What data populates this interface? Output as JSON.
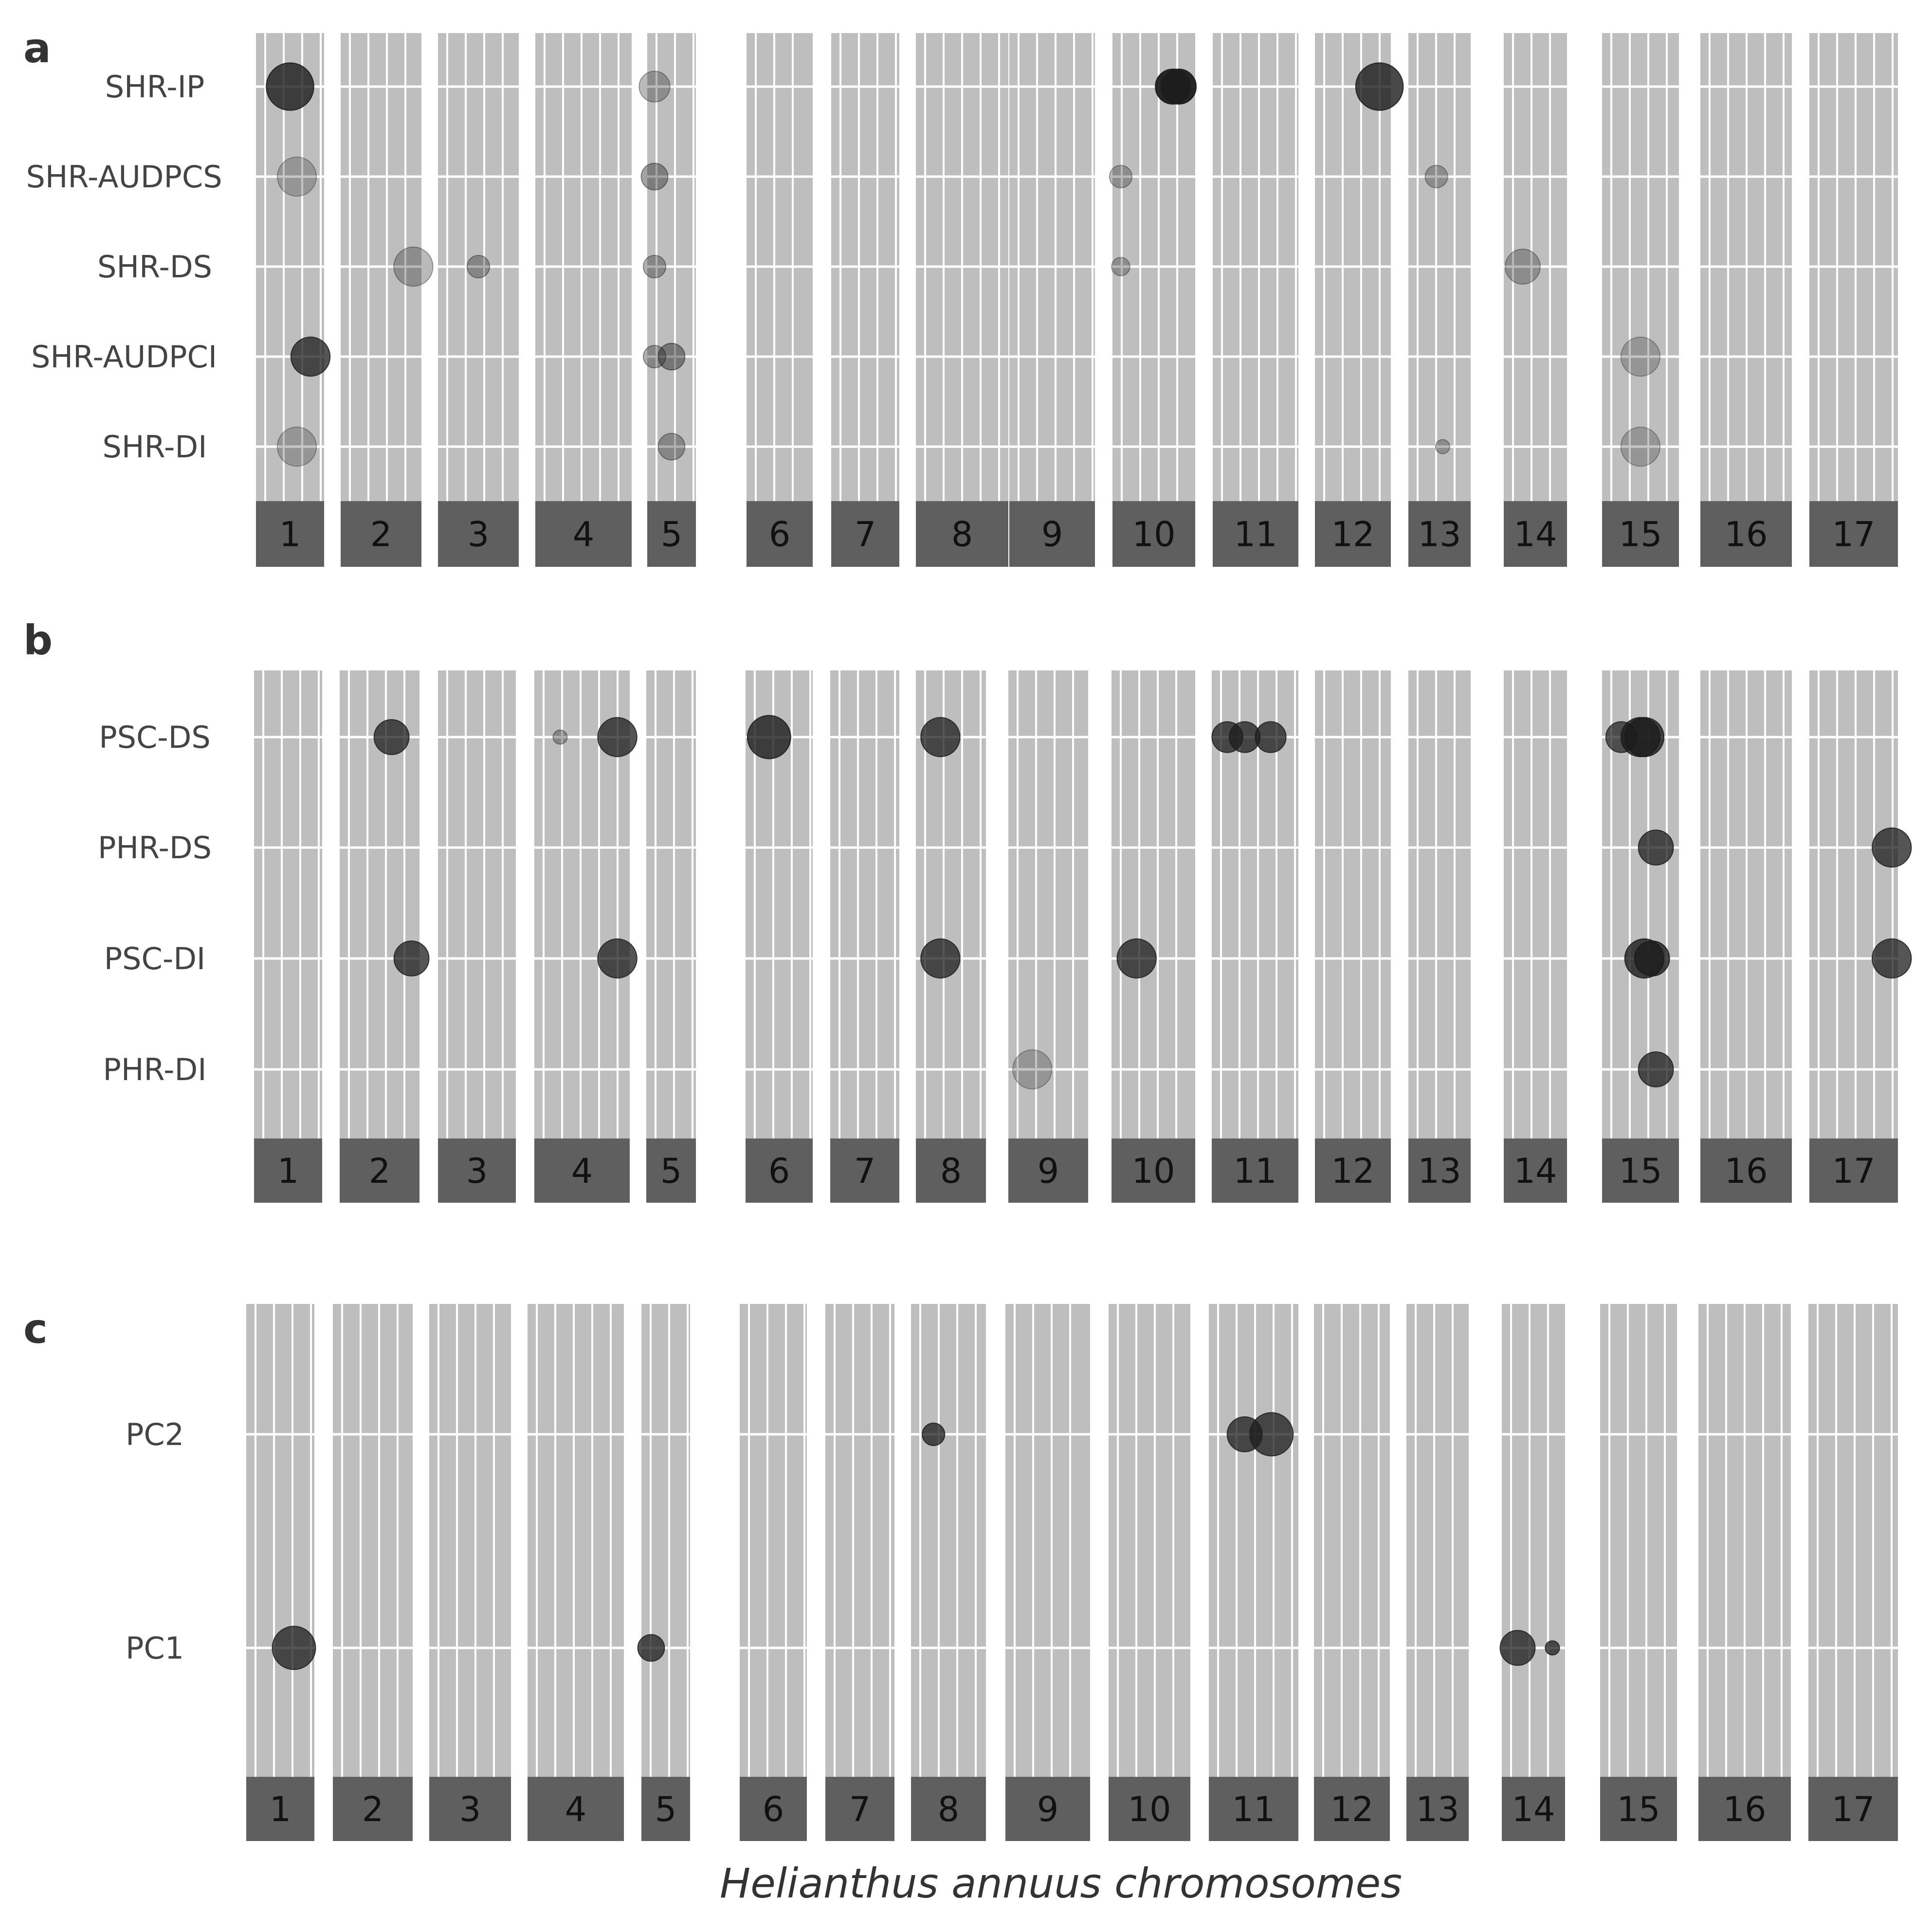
{
  "chart_data": {
    "type": "scatter",
    "xlabel": "Helianthus annuus chromosomes",
    "chromosomes": [
      "1",
      "2",
      "3",
      "4",
      "5",
      "6",
      "7",
      "8",
      "9",
      "10",
      "11",
      "12",
      "13",
      "14",
      "15",
      "16",
      "17"
    ],
    "colors": {
      "panel_bg": "#bebebe",
      "grid": "#ffffff",
      "strip": "#5f5f5f",
      "point": "#1c1c1c"
    },
    "panels": [
      {
        "letter": "a",
        "traits": [
          "SHR-IP",
          "SHR-AUDPCS",
          "SHR-DS",
          "SHR-AUDPCI",
          "SHR-DI"
        ],
        "points": [
          {
            "trait": "SHR-IP",
            "chr": 1,
            "pos": 0.5,
            "size": 10,
            "opacity": 0.8
          },
          {
            "trait": "SHR-IP",
            "chr": 5,
            "pos": 0.15,
            "size": 6,
            "opacity": 0.3
          },
          {
            "trait": "SHR-IP",
            "chr": 10,
            "pos": 0.73,
            "size": 7,
            "opacity": 0.95
          },
          {
            "trait": "SHR-IP",
            "chr": 10,
            "pos": 0.8,
            "size": 7,
            "opacity": 0.95
          },
          {
            "trait": "SHR-IP",
            "chr": 12,
            "pos": 0.85,
            "size": 10,
            "opacity": 0.8
          },
          {
            "trait": "SHR-AUDPCS",
            "chr": 1,
            "pos": 0.6,
            "size": 8,
            "opacity": 0.25
          },
          {
            "trait": "SHR-AUDPCS",
            "chr": 5,
            "pos": 0.15,
            "size": 5,
            "opacity": 0.4
          },
          {
            "trait": "SHR-AUDPCS",
            "chr": 10,
            "pos": 0.1,
            "size": 4,
            "opacity": 0.3
          },
          {
            "trait": "SHR-AUDPCS",
            "chr": 13,
            "pos": 0.45,
            "size": 4,
            "opacity": 0.3
          },
          {
            "trait": "SHR-DS",
            "chr": 2,
            "pos": 0.9,
            "size": 8,
            "opacity": 0.3
          },
          {
            "trait": "SHR-DS",
            "chr": 3,
            "pos": 0.5,
            "size": 4,
            "opacity": 0.35
          },
          {
            "trait": "SHR-DS",
            "chr": 5,
            "pos": 0.15,
            "size": 4,
            "opacity": 0.35
          },
          {
            "trait": "SHR-DS",
            "chr": 10,
            "pos": 0.1,
            "size": 3,
            "opacity": 0.3
          },
          {
            "trait": "SHR-DS",
            "chr": 14,
            "pos": 0.3,
            "size": 7,
            "opacity": 0.3
          },
          {
            "trait": "SHR-AUDPCI",
            "chr": 1,
            "pos": 0.8,
            "size": 8,
            "opacity": 0.75
          },
          {
            "trait": "SHR-AUDPCI",
            "chr": 5,
            "pos": 0.15,
            "size": 4,
            "opacity": 0.35
          },
          {
            "trait": "SHR-AUDPCI",
            "chr": 5,
            "pos": 0.5,
            "size": 5,
            "opacity": 0.45
          },
          {
            "trait": "SHR-AUDPCI",
            "chr": 15,
            "pos": 0.5,
            "size": 8,
            "opacity": 0.25
          },
          {
            "trait": "SHR-DI",
            "chr": 1,
            "pos": 0.6,
            "size": 8,
            "opacity": 0.25
          },
          {
            "trait": "SHR-DI",
            "chr": 5,
            "pos": 0.5,
            "size": 5,
            "opacity": 0.35
          },
          {
            "trait": "SHR-DI",
            "chr": 13,
            "pos": 0.55,
            "size": 2,
            "opacity": 0.3
          },
          {
            "trait": "SHR-DI",
            "chr": 15,
            "pos": 0.5,
            "size": 8,
            "opacity": 0.25
          }
        ]
      },
      {
        "letter": "b",
        "traits": [
          "PSC-DS",
          "PHR-DS",
          "PSC-DI",
          "PHR-DI"
        ],
        "points": [
          {
            "trait": "PSC-DS",
            "chr": 2,
            "pos": 0.65,
            "size": 7,
            "opacity": 0.75
          },
          {
            "trait": "PSC-DS",
            "chr": 4,
            "pos": 0.27,
            "size": 2,
            "opacity": 0.35
          },
          {
            "trait": "PSC-DS",
            "chr": 4,
            "pos": 0.87,
            "size": 8,
            "opacity": 0.75
          },
          {
            "trait": "PSC-DS",
            "chr": 6,
            "pos": 0.35,
            "size": 9,
            "opacity": 0.8
          },
          {
            "trait": "PSC-DS",
            "chr": 8,
            "pos": 0.35,
            "size": 8,
            "opacity": 0.75
          },
          {
            "trait": "PSC-DS",
            "chr": 11,
            "pos": 0.18,
            "size": 6,
            "opacity": 0.75
          },
          {
            "trait": "PSC-DS",
            "chr": 11,
            "pos": 0.38,
            "size": 6,
            "opacity": 0.75
          },
          {
            "trait": "PSC-DS",
            "chr": 11,
            "pos": 0.68,
            "size": 6,
            "opacity": 0.75
          },
          {
            "trait": "PSC-DS",
            "chr": 15,
            "pos": 0.25,
            "size": 6,
            "opacity": 0.7
          },
          {
            "trait": "PSC-DS",
            "chr": 15,
            "pos": 0.5,
            "size": 8,
            "opacity": 0.8
          },
          {
            "trait": "PSC-DS",
            "chr": 15,
            "pos": 0.55,
            "size": 8,
            "opacity": 0.8
          },
          {
            "trait": "PHR-DS",
            "chr": 15,
            "pos": 0.7,
            "size": 7,
            "opacity": 0.75
          },
          {
            "trait": "PHR-DS",
            "chr": 17,
            "pos": 0.93,
            "size": 8,
            "opacity": 0.75
          },
          {
            "trait": "PSC-DI",
            "chr": 2,
            "pos": 0.9,
            "size": 7,
            "opacity": 0.75
          },
          {
            "trait": "PSC-DI",
            "chr": 4,
            "pos": 0.87,
            "size": 8,
            "opacity": 0.75
          },
          {
            "trait": "PSC-DI",
            "chr": 8,
            "pos": 0.35,
            "size": 8,
            "opacity": 0.75
          },
          {
            "trait": "PSC-DI",
            "chr": 10,
            "pos": 0.3,
            "size": 8,
            "opacity": 0.75
          },
          {
            "trait": "PSC-DI",
            "chr": 15,
            "pos": 0.55,
            "size": 8,
            "opacity": 0.8
          },
          {
            "trait": "PSC-DI",
            "chr": 15,
            "pos": 0.65,
            "size": 7,
            "opacity": 0.8
          },
          {
            "trait": "PSC-DI",
            "chr": 17,
            "pos": 0.93,
            "size": 8,
            "opacity": 0.75
          },
          {
            "trait": "PHR-DI",
            "chr": 9,
            "pos": 0.3,
            "size": 8,
            "opacity": 0.25
          },
          {
            "trait": "PHR-DI",
            "chr": 15,
            "pos": 0.7,
            "size": 7,
            "opacity": 0.75
          }
        ]
      },
      {
        "letter": "c",
        "traits": [
          "PC2",
          "PC1"
        ],
        "points": [
          {
            "trait": "PC2",
            "chr": 8,
            "pos": 0.3,
            "size": 4,
            "opacity": 0.75
          },
          {
            "trait": "PC2",
            "chr": 11,
            "pos": 0.4,
            "size": 7,
            "opacity": 0.75
          },
          {
            "trait": "PC2",
            "chr": 11,
            "pos": 0.7,
            "size": 9,
            "opacity": 0.75
          },
          {
            "trait": "PC1",
            "chr": 1,
            "pos": 0.7,
            "size": 9,
            "opacity": 0.75
          },
          {
            "trait": "PC1",
            "chr": 5,
            "pos": 0.2,
            "size": 5,
            "opacity": 0.75
          },
          {
            "trait": "PC1",
            "chr": 14,
            "pos": 0.25,
            "size": 7,
            "opacity": 0.75
          },
          {
            "trait": "PC1",
            "chr": 14,
            "pos": 0.8,
            "size": 2,
            "opacity": 0.75
          }
        ]
      }
    ]
  }
}
